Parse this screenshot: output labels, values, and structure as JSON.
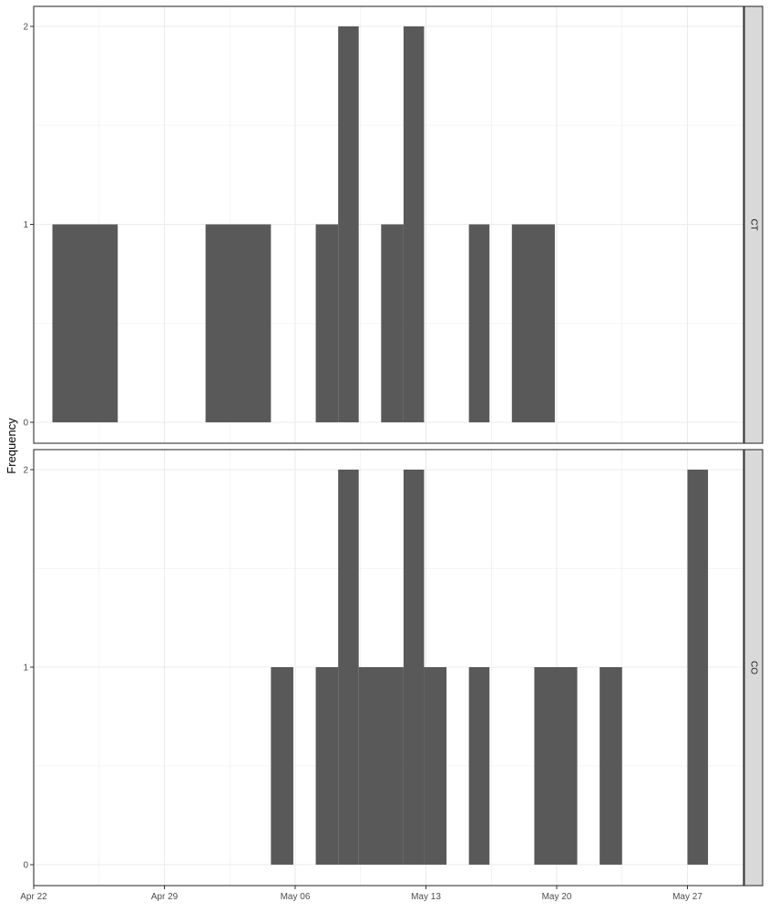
{
  "chart_data": {
    "type": "bar",
    "chart_kind": "histogram, faceted by group (stacked panels, shared x axis)",
    "ylabel": "Frequency",
    "xlabel": "",
    "x_tick_labels": [
      "Apr 22",
      "Apr 29",
      "May 06",
      "May 13",
      "May 20",
      "May 27"
    ],
    "x_ticks": [
      "2020-04-22",
      "2020-04-29",
      "2020-05-06",
      "2020-05-13",
      "2020-05-20",
      "2020-05-27"
    ],
    "y_tick_labels": [
      "0",
      "1",
      "2"
    ],
    "y_ticks": [
      0,
      1,
      2
    ],
    "ylim": [
      0,
      2
    ],
    "xlim": [
      "2020-04-22",
      "2020-05-30"
    ],
    "bin_width_days": 1.17,
    "grid": true,
    "legend": "none",
    "colors": {
      "bar": "#595959",
      "grid": "#ebebeb",
      "panel_border": "#333333",
      "strip_fill": "#d9d9d9"
    },
    "panels": [
      {
        "strip_label": "CT",
        "bins": [
          {
            "start": "2020-04-23",
            "end": "2020-04-26.5",
            "count": 1
          },
          {
            "start": "2020-05-01.2",
            "end": "2020-05-04.7",
            "count": 1
          },
          {
            "start": "2020-05-07.1",
            "end": "2020-05-08.3",
            "count": 1
          },
          {
            "start": "2020-05-08.3",
            "end": "2020-05-09.4",
            "count": 2
          },
          {
            "start": "2020-05-10.6",
            "end": "2020-05-11.8",
            "count": 1
          },
          {
            "start": "2020-05-11.8",
            "end": "2020-05-12.9",
            "count": 2
          },
          {
            "start": "2020-05-15.3",
            "end": "2020-05-16.4",
            "count": 1
          },
          {
            "start": "2020-05-17.6",
            "end": "2020-05-19.9",
            "count": 1
          }
        ]
      },
      {
        "strip_label": "CO",
        "bins": [
          {
            "start": "2020-05-04.7",
            "end": "2020-05-05.9",
            "count": 1
          },
          {
            "start": "2020-05-07.1",
            "end": "2020-05-08.3",
            "count": 1
          },
          {
            "start": "2020-05-08.3",
            "end": "2020-05-09.4",
            "count": 2
          },
          {
            "start": "2020-05-09.4",
            "end": "2020-05-11.8",
            "count": 1
          },
          {
            "start": "2020-05-11.8",
            "end": "2020-05-12.9",
            "count": 2
          },
          {
            "start": "2020-05-12.9",
            "end": "2020-05-14.1",
            "count": 1
          },
          {
            "start": "2020-05-15.3",
            "end": "2020-05-16.4",
            "count": 1
          },
          {
            "start": "2020-05-18.8",
            "end": "2020-05-21.1",
            "count": 1
          },
          {
            "start": "2020-05-22.3",
            "end": "2020-05-23.5",
            "count": 1
          },
          {
            "start": "2020-05-27.0",
            "end": "2020-05-28.1",
            "count": 2
          }
        ]
      }
    ]
  }
}
